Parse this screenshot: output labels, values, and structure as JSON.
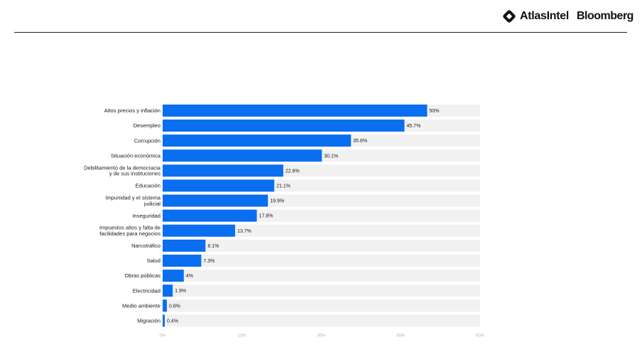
{
  "header": {
    "brand_primary": "AtlasIntel",
    "brand_secondary": "Bloomberg",
    "logo_icon": "atlasintel-diamond-icon"
  },
  "colors": {
    "bar": "#0a6ef0",
    "track": "#f1f1f1",
    "rule": "#222222"
  },
  "chart_data": {
    "type": "bar",
    "orientation": "horizontal",
    "title": "",
    "xlabel": "",
    "ylabel": "",
    "xlim": [
      0,
      60
    ],
    "x_ticks": [
      "0%",
      "15%",
      "30%",
      "45%",
      "60%"
    ],
    "categories": [
      "Altos precios y inflación",
      "Desempleo",
      "Corrupción",
      "Situación económica",
      "Debilitamiento de la democracia\ny de sus instituciones",
      "Educación",
      "Impunidad y el sistema\njudicial",
      "Inseguridad",
      "Impuestos altos y falta de\nfacilidades para negocios",
      "Narcotráfico",
      "Salud",
      "Obras públicas",
      "Electricidad",
      "Medio ambiente",
      "Migración"
    ],
    "values": [
      50,
      45.7,
      35.6,
      30.1,
      22.8,
      21.1,
      19.9,
      17.8,
      13.7,
      8.1,
      7.3,
      4,
      1.9,
      0.8,
      0.4
    ],
    "value_labels": [
      "50%",
      "45.7%",
      "35.6%",
      "30.1%",
      "22.8%",
      "21.1%",
      "19.9%",
      "17.8%",
      "13.7%",
      "8.1%",
      "7.3%",
      "4%",
      "1.9%",
      "0.8%",
      "0.4%"
    ],
    "grid": false,
    "legend": "none"
  }
}
